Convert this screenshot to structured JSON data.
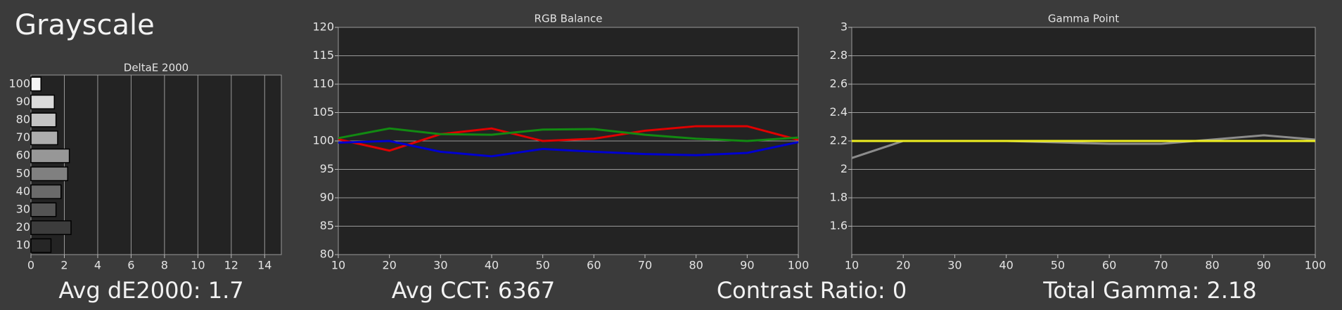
{
  "title": "Grayscale",
  "stats": [
    "Avg dE2000: 1.7",
    "Avg CCT: 6367",
    "Contrast Ratio: 0",
    "Total Gamma: 2.18"
  ],
  "chart_data": [
    {
      "type": "hbar",
      "title": "DeltaE 2000",
      "categories": [
        "100",
        "90",
        "80",
        "70",
        "60",
        "50",
        "40",
        "30",
        "20",
        "10"
      ],
      "values": [
        0.6,
        1.4,
        1.5,
        1.6,
        2.3,
        2.2,
        1.8,
        1.5,
        2.4,
        1.2
      ],
      "colors": [
        "#f4f4f4",
        "#dadada",
        "#c4c4c4",
        "#adadad",
        "#979797",
        "#808080",
        "#6a6a6a",
        "#545454",
        "#3c3c3c",
        "#262626"
      ],
      "xlim": [
        0,
        15
      ],
      "xticks": [
        0,
        2,
        4,
        6,
        8,
        10,
        12,
        14
      ],
      "grid": true
    },
    {
      "type": "line",
      "title": "RGB Balance",
      "x": [
        10,
        20,
        30,
        40,
        50,
        60,
        70,
        80,
        90,
        100
      ],
      "series": [
        {
          "color": "#e00000",
          "values": [
            100.3,
            98.3,
            101.2,
            102.2,
            100,
            100.4,
            101.8,
            102.6,
            102.6,
            100.2
          ]
        },
        {
          "color": "#128a12",
          "values": [
            100.5,
            102.2,
            101.2,
            101.1,
            102,
            102.1,
            101.1,
            100.4,
            100,
            100.6
          ]
        },
        {
          "color": "#0000d0",
          "values": [
            99.7,
            100,
            98.1,
            97.3,
            98.6,
            98.1,
            97.7,
            97.5,
            97.9,
            99.8
          ]
        }
      ],
      "xlim": [
        10,
        100
      ],
      "xticks": [
        10,
        20,
        30,
        40,
        50,
        60,
        70,
        80,
        90,
        100
      ],
      "ylim": [
        80,
        120
      ],
      "yticks": [
        80,
        85,
        90,
        95,
        100,
        105,
        110,
        115,
        120
      ],
      "grid": true
    },
    {
      "type": "line",
      "title": "Gamma Point",
      "x": [
        10,
        20,
        30,
        40,
        50,
        60,
        70,
        80,
        90,
        100
      ],
      "series": [
        {
          "color": "#8c8c8c",
          "values": [
            2.08,
            2.2,
            2.2,
            2.2,
            2.19,
            2.18,
            2.18,
            2.21,
            2.24,
            2.21
          ]
        },
        {
          "color": "#f0f020",
          "values": [
            2.2,
            2.2,
            2.2,
            2.2,
            2.2,
            2.2,
            2.2,
            2.2,
            2.2,
            2.2
          ]
        }
      ],
      "xlim": [
        10,
        100
      ],
      "xticks": [
        10,
        20,
        30,
        40,
        50,
        60,
        70,
        80,
        90,
        100
      ],
      "ylim": [
        1.4,
        3
      ],
      "yticks": [
        1.6,
        1.8,
        2,
        2.2,
        2.4,
        2.6,
        2.8,
        3
      ],
      "grid": true
    }
  ]
}
